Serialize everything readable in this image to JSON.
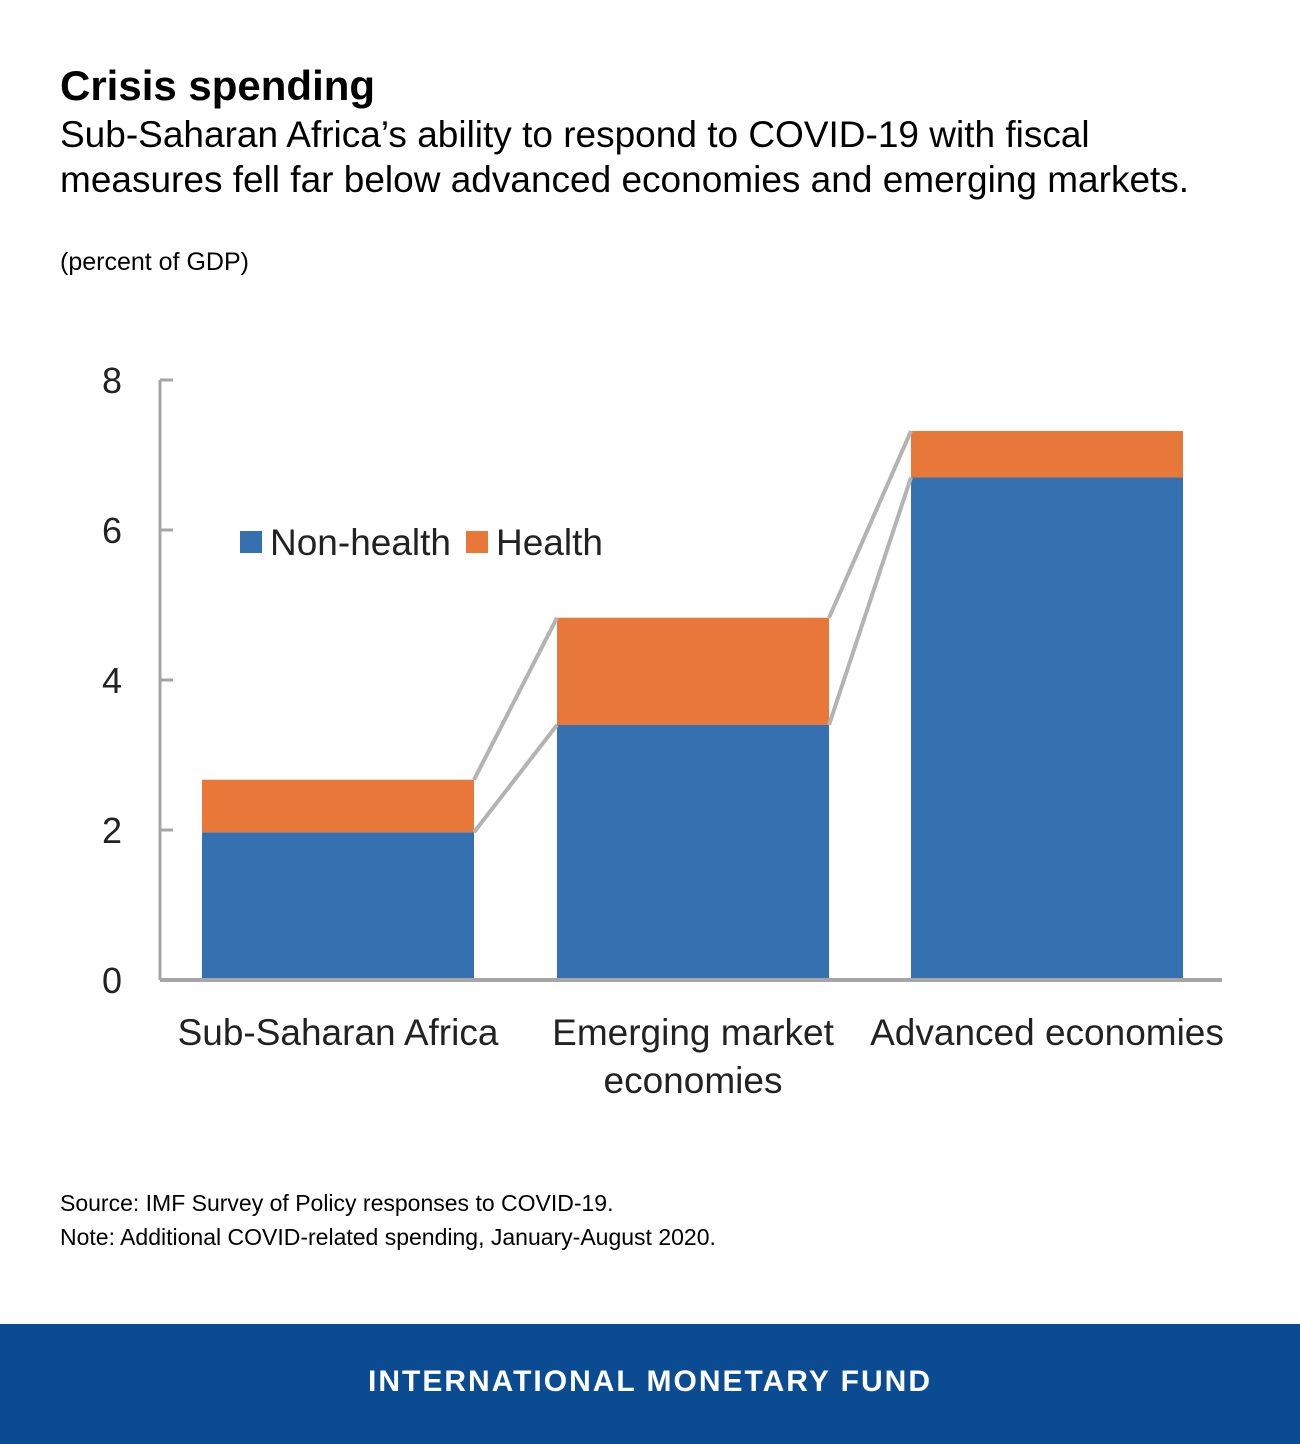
{
  "header": {
    "title": "Crisis spending",
    "subtitle": "Sub-Saharan Africa’s ability to respond to COVID-19 with fiscal measures fell far below advanced economies and emerging markets.",
    "units": "(percent of GDP)"
  },
  "chart_data": {
    "type": "bar",
    "stacked": true,
    "title": "Crisis spending",
    "ylabel": "percent of GDP",
    "ylim": [
      0,
      8
    ],
    "yticks": [
      "0",
      "2",
      "4",
      "6",
      "8"
    ],
    "categories": [
      [
        "Sub-Saharan Africa"
      ],
      [
        "Emerging market",
        "economies"
      ],
      [
        "Advanced economies"
      ]
    ],
    "series": [
      {
        "name": "Non-health",
        "color": "#3570b0",
        "values": [
          1.97,
          3.4,
          6.7
        ]
      },
      {
        "name": "Health",
        "color": "#e8773a",
        "values": [
          0.7,
          1.43,
          0.62
        ]
      }
    ],
    "legend": [
      "Non-health",
      "Health"
    ],
    "legend_position": "upper-left",
    "connector_lines": true,
    "connector_color": "#b3b3b3"
  },
  "notes": {
    "source": "Source: IMF Survey of Policy responses to COVID-19.",
    "note": "Note: Additional COVID-related spending, January-August 2020."
  },
  "footer": {
    "label": "INTERNATIONAL MONETARY FUND"
  }
}
